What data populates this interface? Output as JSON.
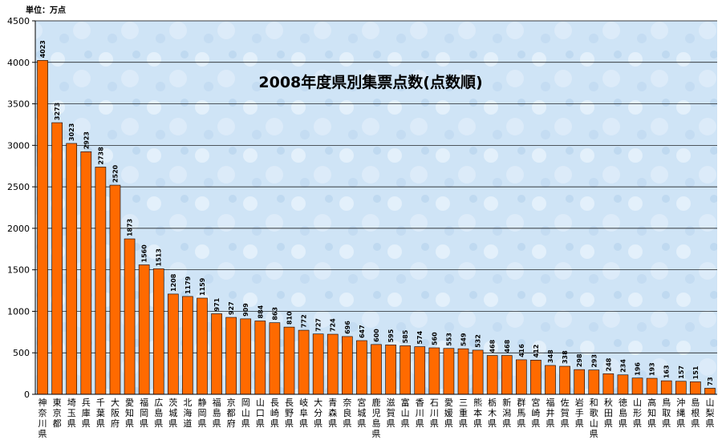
{
  "chart_data": {
    "type": "bar",
    "title": "2008年度県別集票点数(点数順)",
    "unit_label": "単位：万点",
    "ylim": [
      0,
      4500
    ],
    "yticks": [
      0,
      500,
      1000,
      1500,
      2000,
      2500,
      3000,
      3500,
      4000,
      4500
    ],
    "grid": true,
    "legend": "none",
    "categories": [
      "神奈川県",
      "東京都",
      "埼玉県",
      "兵庫県",
      "千葉県",
      "大阪府",
      "愛知県",
      "福岡県",
      "広島県",
      "茨城県",
      "北海道",
      "静岡県",
      "福島県",
      "京都府",
      "岡山県",
      "山口県",
      "長崎県",
      "長野県",
      "岐阜県",
      "大分県",
      "青森県",
      "奈良県",
      "宮城県",
      "鹿児島県",
      "滋賀県",
      "富山県",
      "香川県",
      "石川県",
      "愛媛県",
      "三重県",
      "熊本県",
      "栃木県",
      "新潟県",
      "群馬県",
      "宮崎県",
      "福井県",
      "佐賀県",
      "岩手県",
      "和歌山県",
      "秋田県",
      "徳島県",
      "山形県",
      "高知県",
      "鳥取県",
      "沖縄県",
      "島根県",
      "山梨県"
    ],
    "values": [
      4023,
      3273,
      3023,
      2923,
      2738,
      2520,
      1873,
      1560,
      1513,
      1208,
      1179,
      1159,
      971,
      927,
      909,
      884,
      863,
      810,
      772,
      727,
      724,
      696,
      647,
      600,
      595,
      585,
      574,
      560,
      553,
      549,
      532,
      468,
      468,
      416,
      412,
      348,
      338,
      298,
      293,
      248,
      234,
      196,
      193,
      163,
      157,
      151,
      73
    ],
    "bar_color": "#ff6a00"
  }
}
